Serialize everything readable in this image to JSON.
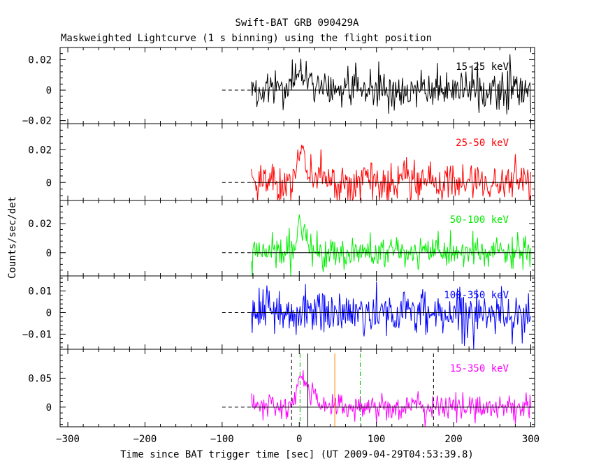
{
  "chart_data": {
    "type": "line",
    "title": "Swift-BAT GRB 090429A",
    "subtitle": "Maskweighted Lightcurve (1 s binning) using the flight position",
    "xlabel": "Time since BAT trigger time [sec] (UT 2009-04-29T04:53:39.8)",
    "ylabel": "Counts/sec/det",
    "xlim": [
      -310,
      305
    ],
    "xticks": [
      -300,
      -200,
      -100,
      0,
      100,
      200,
      300
    ],
    "data_start": -62,
    "data_end": 300,
    "baseline_dashed_range": [
      -100,
      -62
    ],
    "panels": [
      {
        "name": "15-25 keV",
        "color": "#000000",
        "ylim": [
          -0.022,
          0.028
        ],
        "yticks": [
          -0.02,
          0,
          0.02
        ],
        "ytick_labels": [
          "−0.02",
          "0",
          "0.02"
        ],
        "noise_sigma": 0.0062,
        "peak": {
          "amplitude": 0.011,
          "t_peak": 0,
          "rise": 7,
          "decay": 22
        }
      },
      {
        "name": "25-50 keV",
        "color": "#ff0000",
        "ylim": [
          -0.011,
          0.036
        ],
        "yticks": [
          0,
          0.02
        ],
        "ytick_labels": [
          "0",
          "0.02"
        ],
        "noise_sigma": 0.0058,
        "peak": {
          "amplitude": 0.021,
          "t_peak": 2,
          "rise": 5,
          "decay": 10
        }
      },
      {
        "name": "50-100 keV",
        "color": "#00ee00",
        "ylim": [
          -0.016,
          0.036
        ],
        "yticks": [
          0,
          0.02
        ],
        "ytick_labels": [
          "0",
          "0.02"
        ],
        "noise_sigma": 0.0056,
        "peak": {
          "amplitude": 0.02,
          "t_peak": 2,
          "rise": 4,
          "decay": 9
        }
      },
      {
        "name": "100-350 keV",
        "color": "#0000ff",
        "ylim": [
          -0.017,
          0.017
        ],
        "yticks": [
          -0.01,
          0,
          0.01
        ],
        "ytick_labels": [
          "−0.01",
          "0",
          "0.01"
        ],
        "noise_sigma": 0.0052,
        "peak": null
      },
      {
        "name": "15-350 keV",
        "color": "#ff00ff",
        "ylim": [
          -0.034,
          0.1
        ],
        "yticks": [
          0,
          0.05
        ],
        "ytick_labels": [
          "0",
          "0.05"
        ],
        "noise_sigma": 0.0115,
        "peak": {
          "amplitude": 0.055,
          "t_peak": 3,
          "rise": 5,
          "decay": 15
        }
      }
    ],
    "markers": [
      {
        "x": -10,
        "style": "dashed",
        "color": "#000000"
      },
      {
        "x": 1,
        "style": "dashdot",
        "color": "#00bb00"
      },
      {
        "x": 11,
        "style": "solid",
        "color": "#000000"
      },
      {
        "x": 46,
        "style": "solid",
        "color": "#ff8800"
      },
      {
        "x": 79,
        "style": "dashdot",
        "color": "#00bb00"
      },
      {
        "x": 174,
        "style": "dashed",
        "color": "#000000"
      }
    ]
  }
}
